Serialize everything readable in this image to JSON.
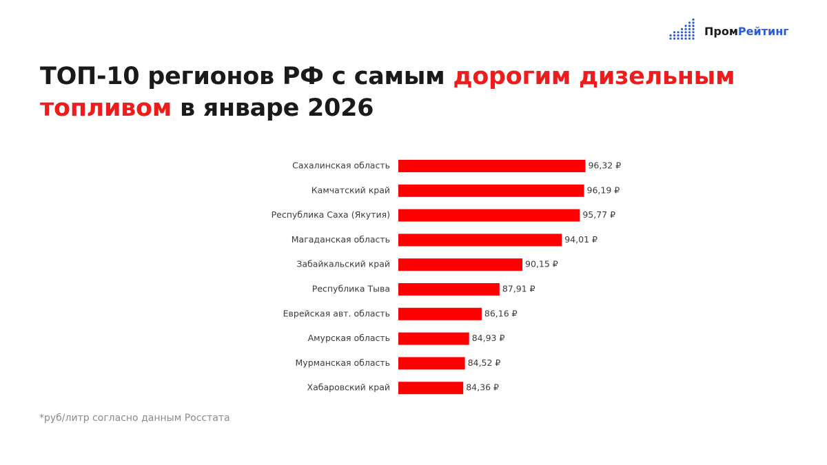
{
  "chart_data": {
    "type": "bar",
    "orientation": "horizontal",
    "logo": [
      {
        "text": "Пром",
        "color": "#1a1a1a"
      },
      {
        "text": "Рейтинг",
        "color": "#2a5bd7"
      }
    ],
    "title": [
      {
        "text": "ТОП-10 регионов РФ с самым ",
        "color": "#1a1a1a"
      },
      {
        "text": "дорогим дизельным",
        "color": "#ee1c1c"
      },
      {
        "text": "топливом",
        "color": "#ee1c1c"
      },
      {
        "text": " в январе 2026",
        "color": "#1a1a1a"
      }
    ],
    "categories": [
      "Сахалинская область",
      "Камчатский край",
      "Республика Саха (Якутия)",
      "Магаданская область",
      "Забайкальский край",
      "Республика Тыва",
      "Еврейская авт. область",
      "Амурская область",
      "Мурманская область",
      "Хабаровский край"
    ],
    "values": [
      96.32,
      96.19,
      95.77,
      94.01,
      90.15,
      87.91,
      86.16,
      84.93,
      84.52,
      84.36
    ],
    "value_labels": [
      "96,32 ₽",
      "96,19 ₽",
      "95,77 ₽",
      "94,01 ₽",
      "90,15 ₽",
      "87,91 ₽",
      "86,16 ₽",
      "84,93 ₽",
      "84,52 ₽",
      "84,36 ₽"
    ],
    "color": "#ff0000",
    "xlim": [
      78,
      100
    ],
    "footnote": "*руб/литр согласно данным Росстата"
  }
}
